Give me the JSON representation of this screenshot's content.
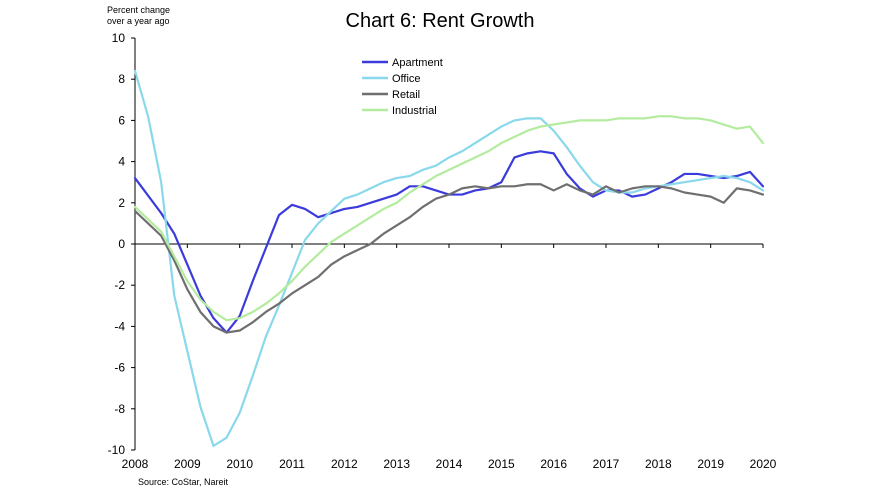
{
  "chart_data": {
    "type": "line",
    "title": "Chart 6: Rent Growth",
    "ylabel_lines": [
      "Percent change",
      "over a year ago"
    ],
    "xlabel": "",
    "source": "Source: CoStar, Nareit",
    "ylim": [
      -10,
      10
    ],
    "yticks": [
      10,
      8,
      6,
      4,
      2,
      0,
      -2,
      -4,
      -6,
      -8,
      -10
    ],
    "xlim": [
      2008,
      2020
    ],
    "xticks": [
      "2008",
      "2009",
      "2010",
      "2011",
      "2012",
      "2013",
      "2014",
      "2015",
      "2016",
      "2017",
      "2018",
      "2019",
      "2020"
    ],
    "grid": false,
    "legend_position": "top-center",
    "series": [
      {
        "name": "Apartment",
        "color": "#3b3bdc",
        "x": [
          2008,
          2008.5,
          2008.75,
          2009,
          2009.25,
          2009.5,
          2009.75,
          2010,
          2010.25,
          2010.5,
          2010.75,
          2011,
          2011.25,
          2011.5,
          2011.75,
          2012,
          2012.25,
          2012.5,
          2012.75,
          2013,
          2013.25,
          2013.5,
          2013.75,
          2014,
          2014.25,
          2014.5,
          2014.75,
          2015,
          2015.25,
          2015.5,
          2015.75,
          2016,
          2016.25,
          2016.5,
          2016.75,
          2017,
          2017.25,
          2017.5,
          2017.75,
          2018,
          2018.25,
          2018.5,
          2018.75,
          2019,
          2019.25,
          2019.5,
          2019.75,
          2020
        ],
        "values": [
          3.2,
          1.5,
          0.5,
          -1.0,
          -2.5,
          -3.6,
          -4.3,
          -3.5,
          -1.8,
          -0.2,
          1.4,
          1.9,
          1.7,
          1.3,
          1.5,
          1.7,
          1.8,
          2.0,
          2.2,
          2.4,
          2.8,
          2.8,
          2.6,
          2.4,
          2.4,
          2.6,
          2.7,
          3.0,
          4.2,
          4.4,
          4.5,
          4.4,
          3.4,
          2.7,
          2.3,
          2.6,
          2.6,
          2.3,
          2.4,
          2.7,
          3.0,
          3.4,
          3.4,
          3.3,
          3.2,
          3.3,
          3.5,
          2.8
        ]
      },
      {
        "name": "Office",
        "color": "#8ad8ec",
        "x": [
          2008,
          2008.25,
          2008.5,
          2008.75,
          2009,
          2009.25,
          2009.5,
          2009.75,
          2010,
          2010.25,
          2010.5,
          2010.75,
          2011,
          2011.25,
          2011.5,
          2011.75,
          2012,
          2012.25,
          2012.5,
          2012.75,
          2013,
          2013.25,
          2013.5,
          2013.75,
          2014,
          2014.25,
          2014.5,
          2014.75,
          2015,
          2015.25,
          2015.5,
          2015.75,
          2016,
          2016.25,
          2016.5,
          2016.75,
          2017,
          2017.25,
          2017.5,
          2017.75,
          2018,
          2018.25,
          2018.5,
          2018.75,
          2019,
          2019.25,
          2019.5,
          2019.75,
          2020
        ],
        "values": [
          8.4,
          6.2,
          3.0,
          -2.5,
          -5.2,
          -7.9,
          -9.8,
          -9.4,
          -8.2,
          -6.4,
          -4.5,
          -3.0,
          -1.4,
          0.2,
          1.0,
          1.6,
          2.2,
          2.4,
          2.7,
          3.0,
          3.2,
          3.3,
          3.6,
          3.8,
          4.2,
          4.5,
          4.9,
          5.3,
          5.7,
          6.0,
          6.1,
          6.1,
          5.5,
          4.7,
          3.8,
          3.0,
          2.6,
          2.5,
          2.5,
          2.7,
          2.8,
          2.9,
          3.0,
          3.1,
          3.2,
          3.3,
          3.2,
          3.0,
          2.6
        ]
      },
      {
        "name": "Retail",
        "color": "#6f6f6f",
        "x": [
          2008,
          2008.5,
          2008.75,
          2009,
          2009.25,
          2009.5,
          2009.75,
          2010,
          2010.25,
          2010.5,
          2010.75,
          2011,
          2011.25,
          2011.5,
          2011.75,
          2012,
          2012.25,
          2012.5,
          2012.75,
          2013,
          2013.25,
          2013.5,
          2013.75,
          2014,
          2014.25,
          2014.5,
          2014.75,
          2015,
          2015.25,
          2015.5,
          2015.75,
          2016,
          2016.25,
          2016.5,
          2016.75,
          2017,
          2017.25,
          2017.5,
          2017.75,
          2018,
          2018.25,
          2018.5,
          2018.75,
          2019,
          2019.25,
          2019.5,
          2019.75,
          2020
        ],
        "values": [
          1.6,
          0.4,
          -0.8,
          -2.2,
          -3.3,
          -4.0,
          -4.3,
          -4.2,
          -3.8,
          -3.3,
          -2.9,
          -2.4,
          -2.0,
          -1.6,
          -1.0,
          -0.6,
          -0.3,
          0.0,
          0.5,
          0.9,
          1.3,
          1.8,
          2.2,
          2.4,
          2.7,
          2.8,
          2.7,
          2.8,
          2.8,
          2.9,
          2.9,
          2.6,
          2.9,
          2.6,
          2.4,
          2.8,
          2.5,
          2.7,
          2.8,
          2.8,
          2.7,
          2.5,
          2.4,
          2.3,
          2.0,
          2.7,
          2.6,
          2.4
        ]
      },
      {
        "name": "Industrial",
        "color": "#b3ec9e",
        "x": [
          2008,
          2008.5,
          2008.75,
          2009,
          2009.25,
          2009.5,
          2009.75,
          2010,
          2010.25,
          2010.5,
          2010.75,
          2011,
          2011.25,
          2011.5,
          2011.75,
          2012,
          2012.25,
          2012.5,
          2012.75,
          2013,
          2013.25,
          2013.5,
          2013.75,
          2014,
          2014.25,
          2014.5,
          2014.75,
          2015,
          2015.25,
          2015.5,
          2015.75,
          2016,
          2016.25,
          2016.5,
          2016.75,
          2017,
          2017.25,
          2017.5,
          2017.75,
          2018,
          2018.25,
          2018.5,
          2018.75,
          2019,
          2019.25,
          2019.5,
          2019.75,
          2020
        ],
        "values": [
          1.8,
          0.6,
          -0.6,
          -1.8,
          -2.7,
          -3.3,
          -3.7,
          -3.6,
          -3.3,
          -2.9,
          -2.4,
          -1.8,
          -1.1,
          -0.5,
          0.1,
          0.5,
          0.9,
          1.3,
          1.7,
          2.0,
          2.5,
          2.9,
          3.3,
          3.6,
          3.9,
          4.2,
          4.5,
          4.9,
          5.2,
          5.5,
          5.7,
          5.8,
          5.9,
          6.0,
          6.0,
          6.0,
          6.1,
          6.1,
          6.1,
          6.2,
          6.2,
          6.1,
          6.1,
          6.0,
          5.8,
          5.6,
          5.7,
          4.9
        ]
      }
    ]
  }
}
